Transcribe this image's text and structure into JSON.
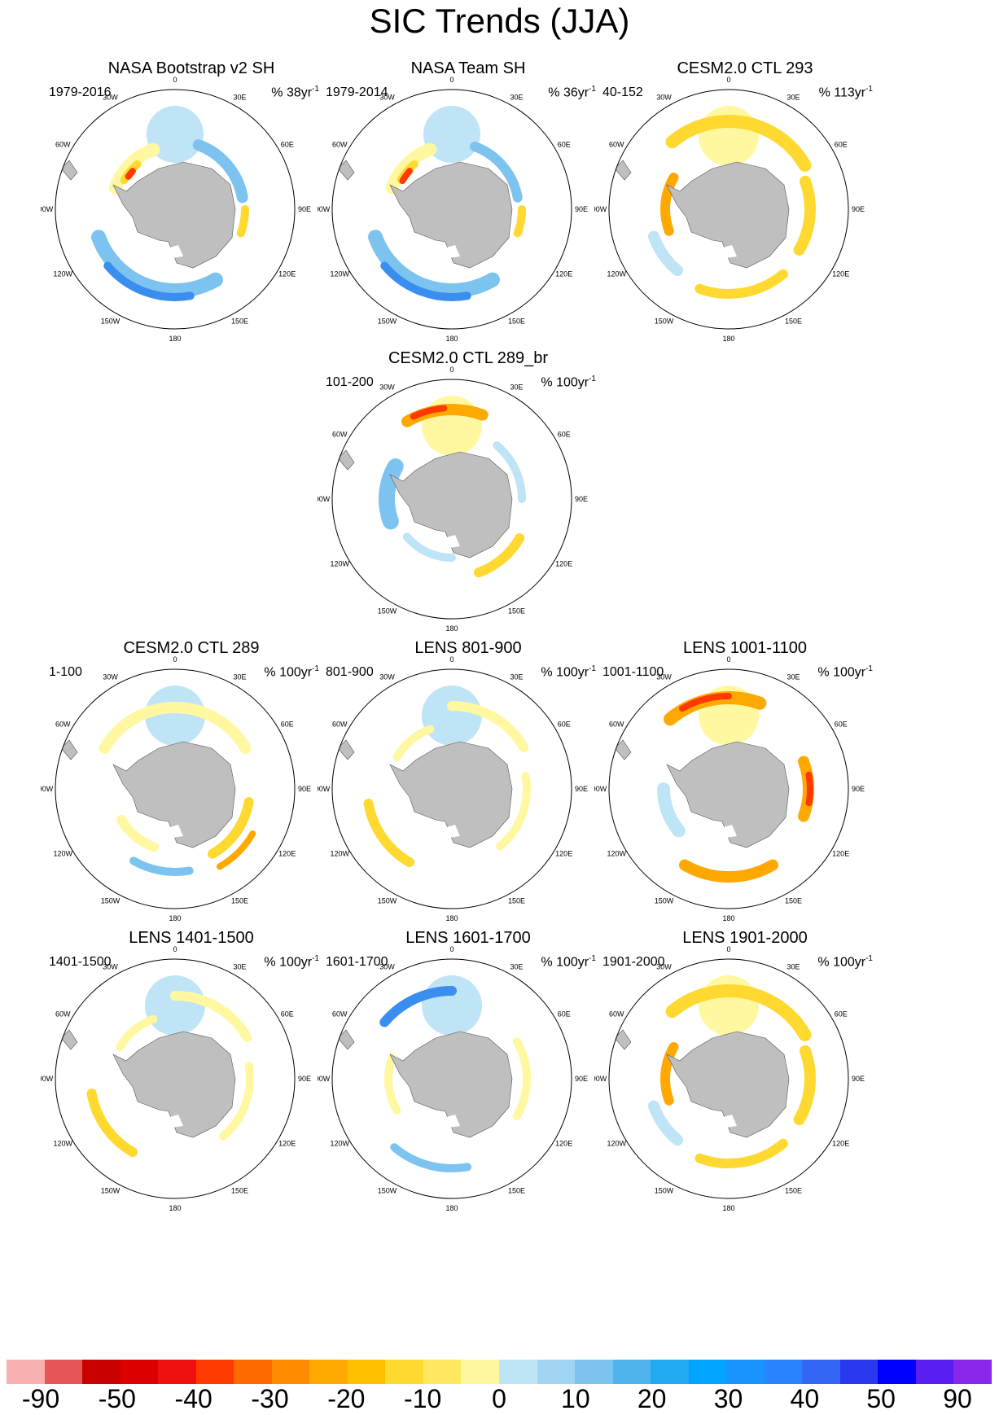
{
  "title": "SIC Trends (JJA)",
  "panels": [
    {
      "id": "p1",
      "title": "NASA Bootstrap v2 SH",
      "range": "1979-2016",
      "units_prefix": "% 38yr",
      "units_sup": "-1",
      "pattern": "obs1"
    },
    {
      "id": "p2",
      "title": "NASA Team SH",
      "range": "1979-2014",
      "units_prefix": "% 36yr",
      "units_sup": "-1",
      "pattern": "obs2"
    },
    {
      "id": "p3",
      "title": "CESM2.0 CTL 293",
      "range": "40-152",
      "units_prefix": "% 113yr",
      "units_sup": "-1",
      "pattern": "warm"
    },
    {
      "id": "p4",
      "title": "CESM2.0 CTL 289_br",
      "range": "101-200",
      "units_prefix": "% 100yr",
      "units_sup": "-1",
      "pattern": "mixed_warm"
    },
    {
      "id": "p5",
      "title": "CESM2.0 CTL 289",
      "range": "1-100",
      "units_prefix": "% 100yr",
      "units_sup": "-1",
      "pattern": "mixed_cool"
    },
    {
      "id": "p6",
      "title": "LENS 801-900",
      "range": "801-900",
      "units_prefix": "% 100yr",
      "units_sup": "-1",
      "pattern": "mixed"
    },
    {
      "id": "p7",
      "title": "LENS 1001-1100",
      "range": "1001-1100",
      "units_prefix": "% 100yr",
      "units_sup": "-1",
      "pattern": "warm_strong"
    },
    {
      "id": "p8",
      "title": "LENS 1401-1500",
      "range": "1401-1500",
      "units_prefix": "% 100yr",
      "units_sup": "-1",
      "pattern": "mixed"
    },
    {
      "id": "p9",
      "title": "LENS 1601-1700",
      "range": "1601-1700",
      "units_prefix": "% 100yr",
      "units_sup": "-1",
      "pattern": "cool"
    },
    {
      "id": "p10",
      "title": "LENS 1901-2000",
      "range": "1901-2000",
      "units_prefix": "% 100yr",
      "units_sup": "-1",
      "pattern": "warm"
    }
  ],
  "map_labels": {
    "lon_top": "0",
    "lon_30w": "30W",
    "lon_30e": "30E",
    "lon_60w": "60W",
    "lon_60e": "60E",
    "lon_90w": "90W",
    "lon_90e": "90E",
    "lon_120w": "120W",
    "lon_120e": "120E",
    "lon_150w": "150W",
    "lon_150e": "150E",
    "lon_180": "180"
  },
  "colorbar": {
    "colors": [
      "#f9b0b0",
      "#e65757",
      "#c80000",
      "#dd0000",
      "#f01010",
      "#ff3a00",
      "#ff6a00",
      "#ff8c00",
      "#ffa800",
      "#ffc000",
      "#ffd830",
      "#ffe860",
      "#fff8a0",
      "#bfe4f6",
      "#a0d4f2",
      "#7cc4ef",
      "#4fb4ee",
      "#22aaf3",
      "#00a5ff",
      "#1994ff",
      "#2a84ff",
      "#3466f5",
      "#2a38f0",
      "#0000ff",
      "#5a1ef2",
      "#8a26ea"
    ],
    "labels": [
      "-90",
      "-50",
      "-40",
      "-30",
      "-20",
      "-10",
      "0",
      "10",
      "20",
      "30",
      "40",
      "50",
      "90"
    ]
  }
}
